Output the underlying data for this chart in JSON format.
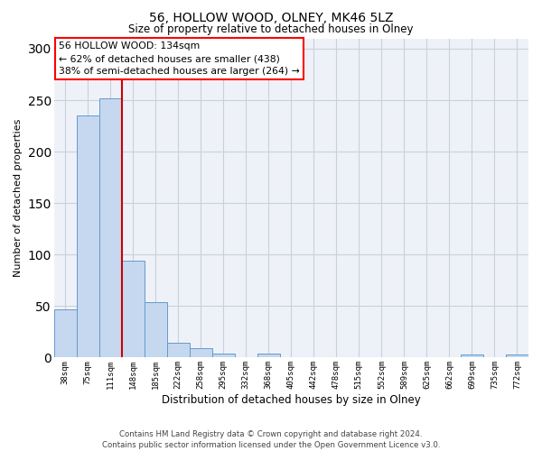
{
  "title": "56, HOLLOW WOOD, OLNEY, MK46 5LZ",
  "subtitle": "Size of property relative to detached houses in Olney",
  "xlabel": "Distribution of detached houses by size in Olney",
  "ylabel": "Number of detached properties",
  "footer_line1": "Contains HM Land Registry data © Crown copyright and database right 2024.",
  "footer_line2": "Contains public sector information licensed under the Open Government Licence v3.0.",
  "bin_labels": [
    "38sqm",
    "75sqm",
    "111sqm",
    "148sqm",
    "185sqm",
    "222sqm",
    "258sqm",
    "295sqm",
    "332sqm",
    "368sqm",
    "405sqm",
    "442sqm",
    "478sqm",
    "515sqm",
    "552sqm",
    "589sqm",
    "625sqm",
    "662sqm",
    "699sqm",
    "735sqm",
    "772sqm"
  ],
  "bar_values": [
    47,
    235,
    252,
    94,
    54,
    14,
    9,
    4,
    0,
    4,
    0,
    0,
    0,
    0,
    0,
    0,
    0,
    0,
    3,
    0,
    3
  ],
  "bar_color": "#c5d8f0",
  "bar_edge_color": "#6699cc",
  "highlight_line_color": "#cc0000",
  "annotation_box_text": "56 HOLLOW WOOD: 134sqm\n← 62% of detached houses are smaller (438)\n38% of semi-detached houses are larger (264) →",
  "ylim": [
    0,
    310
  ],
  "yticks": [
    0,
    50,
    100,
    150,
    200,
    250,
    300
  ],
  "grid_color": "#c8d0dc",
  "bg_color": "#eef2f8",
  "fig_bg_color": "#ffffff"
}
